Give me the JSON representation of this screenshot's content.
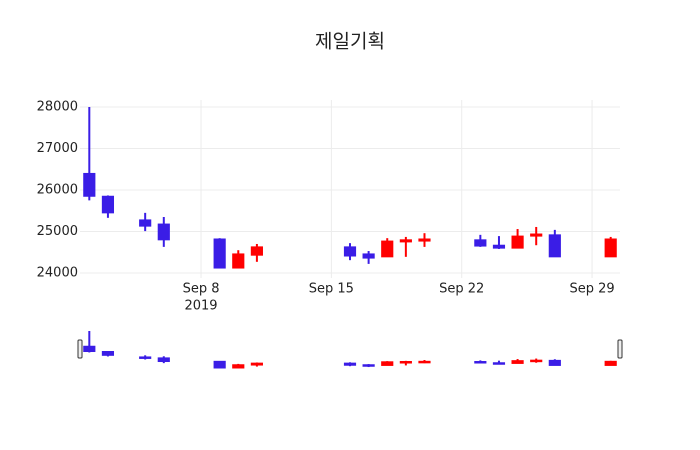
{
  "chart_data": {
    "type": "candlestick",
    "title": "제일기획",
    "x": [
      "2019-09-02",
      "2019-09-03",
      "2019-09-05",
      "2019-09-06",
      "2019-09-09",
      "2019-09-10",
      "2019-09-11",
      "2019-09-16",
      "2019-09-17",
      "2019-09-18",
      "2019-09-19",
      "2019-09-20",
      "2019-09-23",
      "2019-09-24",
      "2019-09-25",
      "2019-09-26",
      "2019-09-27",
      "2019-09-30"
    ],
    "open": [
      26400,
      25850,
      25280,
      25180,
      24820,
      24120,
      24430,
      24630,
      24460,
      24390,
      24750,
      24770,
      24800,
      24670,
      24600,
      24890,
      24920,
      24390
    ],
    "high": [
      28000,
      25870,
      25450,
      25350,
      24840,
      24550,
      24700,
      24720,
      24530,
      24840,
      24870,
      24960,
      24920,
      24890,
      25060,
      25110,
      25040,
      24870
    ],
    "low": [
      25750,
      25330,
      25010,
      24630,
      24120,
      24120,
      24270,
      24310,
      24220,
      24390,
      24390,
      24630,
      24630,
      24580,
      24600,
      24670,
      24390,
      24390
    ],
    "close": [
      25850,
      25450,
      25130,
      24800,
      24120,
      24460,
      24630,
      24410,
      24360,
      24770,
      24800,
      24820,
      24650,
      24600,
      24890,
      24940,
      24390,
      24820
    ],
    "increasing_color": "#ff0000",
    "decreasing_color": "#3a1de6",
    "xlim": [
      "2019-09-01T12:00",
      "2019-09-30T12:00"
    ],
    "xticks": [
      {
        "value": "2019-09-08",
        "label": "Sep 8",
        "sublabel": "2019"
      },
      {
        "value": "2019-09-15",
        "label": "Sep 15"
      },
      {
        "value": "2019-09-22",
        "label": "Sep 22"
      },
      {
        "value": "2019-09-29",
        "label": "Sep 29"
      }
    ],
    "ylim": [
      23880,
      28170
    ],
    "yticks": [
      24000,
      25000,
      26000,
      27000,
      28000
    ],
    "grid": true,
    "rangeslider": true
  }
}
